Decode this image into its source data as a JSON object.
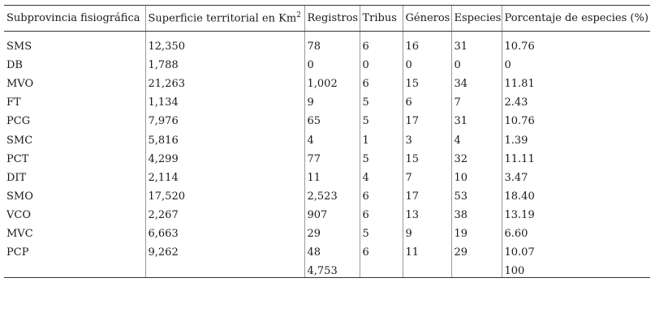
{
  "table": {
    "headers": [
      "Subprovincia fisiográfica",
      "Superficie territorial en Km",
      "Registros",
      "Tribus",
      "Géneros",
      "Especies",
      "Porcentaje de especies (%)"
    ],
    "area_unit_superscript": "2",
    "rows": [
      [
        "SMS",
        "12,350",
        "78",
        "6",
        "16",
        "31",
        "10.76"
      ],
      [
        "DB",
        "1,788",
        "0",
        "0",
        "0",
        "0",
        "0"
      ],
      [
        "MVO",
        "21,263",
        "1,002",
        "6",
        "15",
        "34",
        "11.81"
      ],
      [
        "FT",
        "1,134",
        "9",
        "5",
        "6",
        "7",
        "2.43"
      ],
      [
        "PCG",
        "7,976",
        "65",
        "5",
        "17",
        "31",
        "10.76"
      ],
      [
        "SMC",
        "5,816",
        "4",
        "1",
        "3",
        "4",
        "1.39"
      ],
      [
        "PCT",
        "4,299",
        "77",
        "5",
        "15",
        "32",
        "11.11"
      ],
      [
        "DIT",
        "2,114",
        "11",
        "4",
        "7",
        "10",
        "3.47"
      ],
      [
        "SMO",
        "17,520",
        "2,523",
        "6",
        "17",
        "53",
        "18.40"
      ],
      [
        "VCO",
        "2,267",
        "907",
        "6",
        "13",
        "38",
        "13.19"
      ],
      [
        "MVC",
        "6,663",
        "29",
        "5",
        "9",
        "19",
        "6.60"
      ],
      [
        "PCP",
        "9,262",
        "48",
        "6",
        "11",
        "29",
        "10.07"
      ],
      [
        "",
        "",
        "4,753",
        "",
        "",
        "",
        "100"
      ]
    ]
  }
}
